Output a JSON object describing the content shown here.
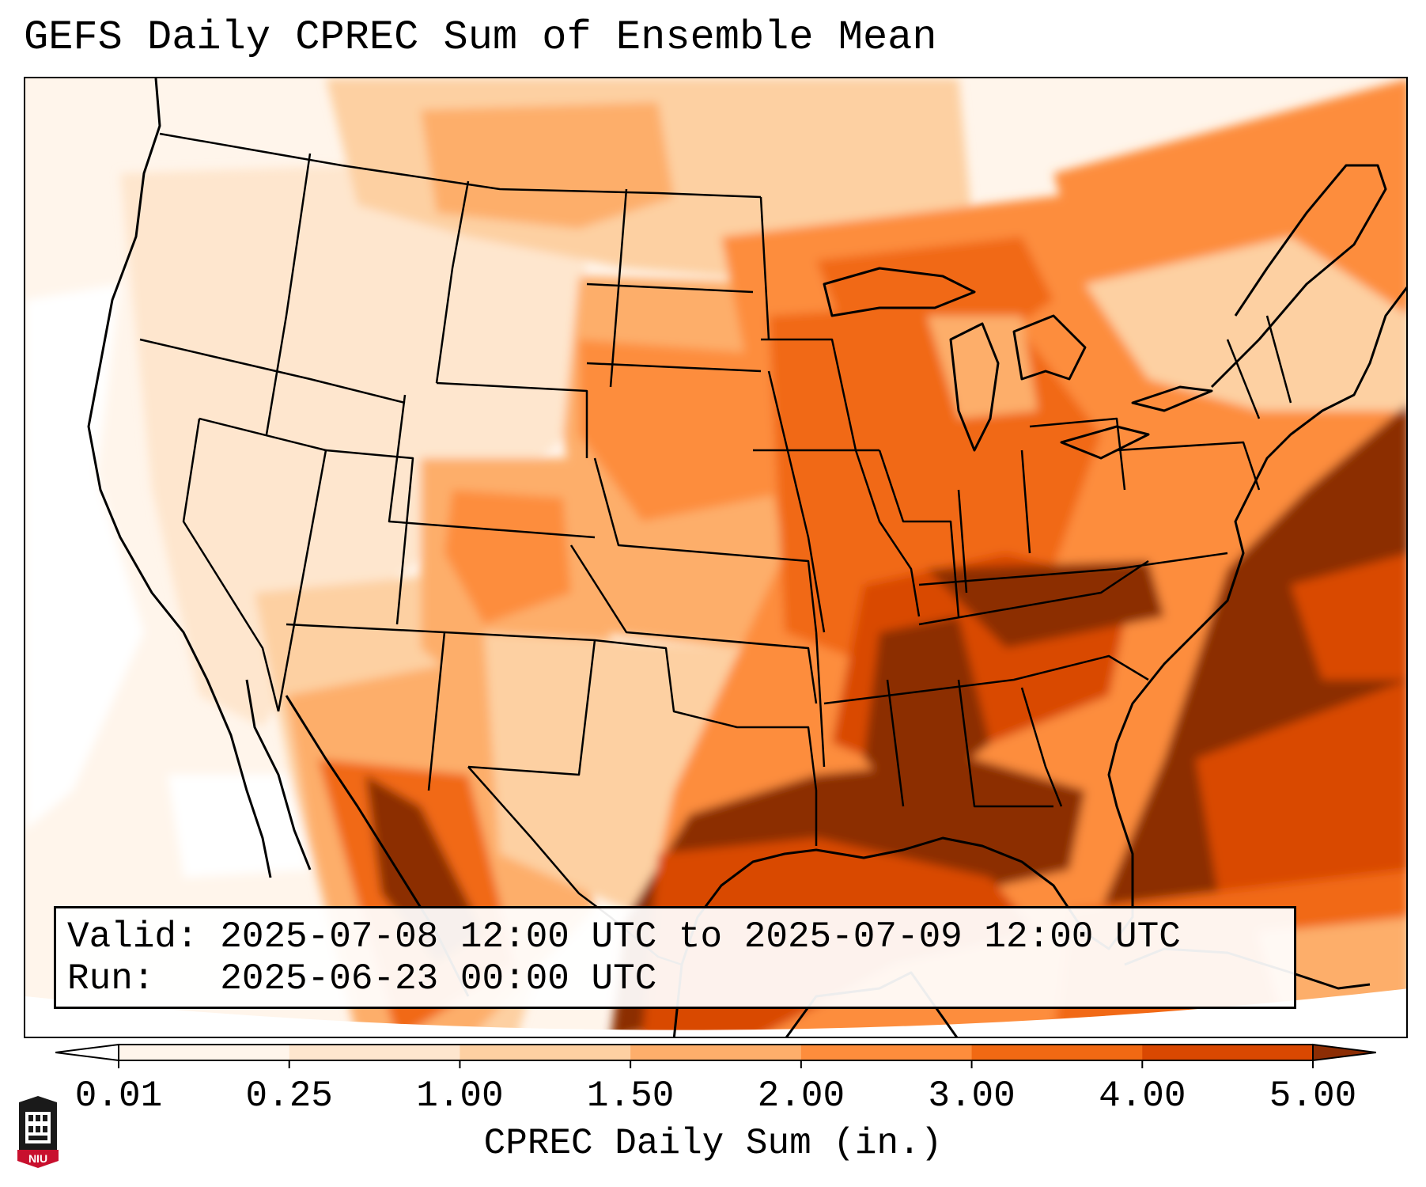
{
  "title": "GEFS Daily CPREC Sum of Ensemble Mean",
  "info": {
    "valid_line": "Valid: 2025-07-08 12:00 UTC to 2025-07-09 12:00 UTC",
    "run_line": "Run:   2025-06-23 00:00 UTC"
  },
  "colorbar": {
    "label": "CPREC Daily Sum (in.)",
    "ticks": [
      "0.01",
      "0.25",
      "1.00",
      "1.50",
      "2.00",
      "3.00",
      "4.00",
      "5.00"
    ],
    "colors": [
      "#fff5eb",
      "#fee6ce",
      "#fdd0a2",
      "#fdae6b",
      "#fd8d3c",
      "#f16913",
      "#d94801",
      "#8c2d04"
    ],
    "under_color": "#ffffff",
    "over_color": "#8c2d04"
  },
  "logo": {
    "text": "NIU",
    "icon": "university-shield-icon"
  },
  "colors": {
    "background": "#ffffff",
    "border": "#000000"
  }
}
